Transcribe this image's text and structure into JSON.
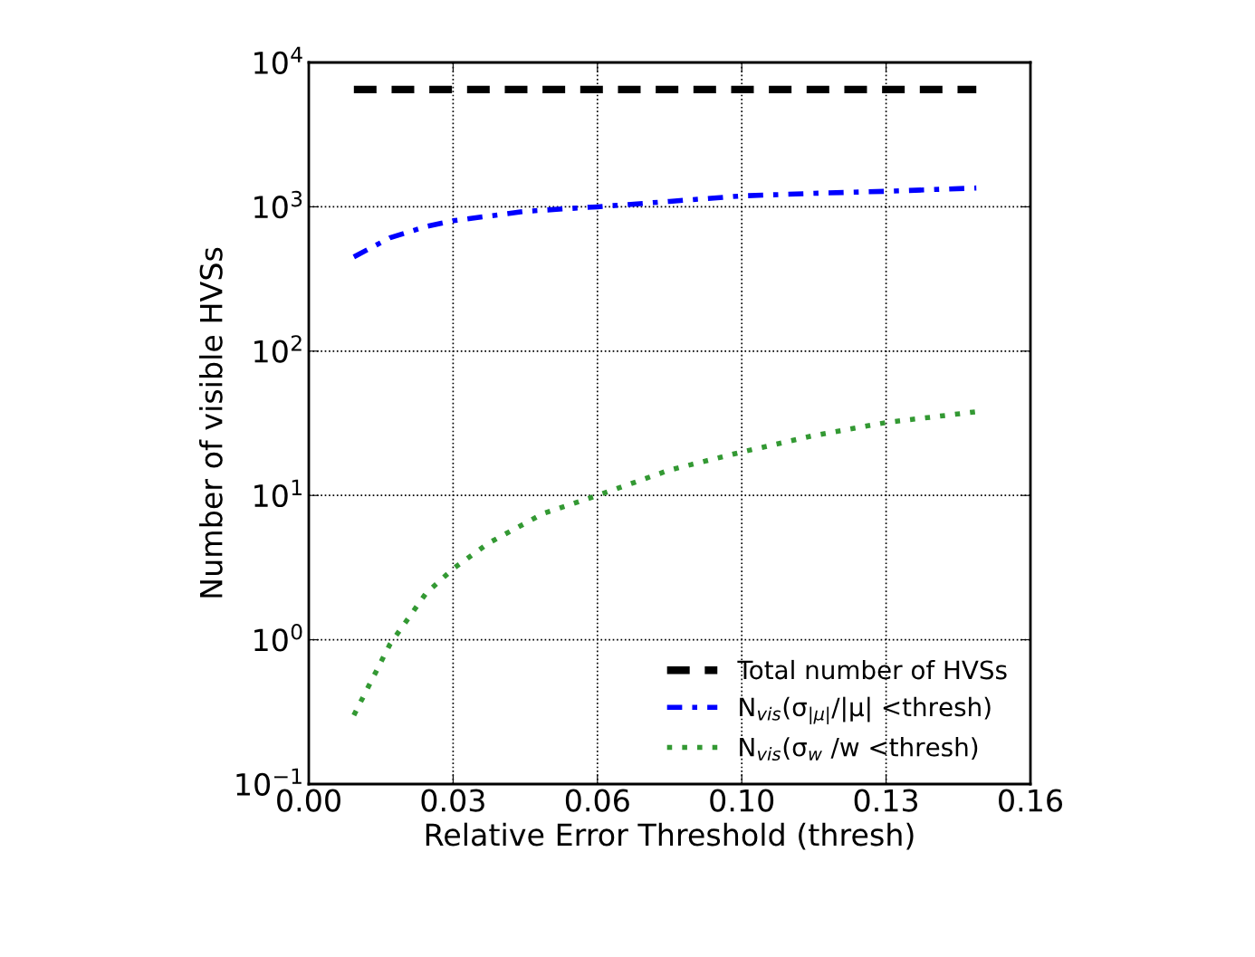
{
  "chart_data": {
    "type": "line",
    "xlabel": "Relative Error Threshold (thresh)",
    "ylabel": "Number of visible HVSs",
    "log": "y",
    "grid": true,
    "legend": "bottom right",
    "xlim": [
      0,
      0.16
    ],
    "xticks": [
      {
        "value": 0,
        "label": "0.00"
      },
      {
        "value": 0.032,
        "label": "0.03"
      },
      {
        "value": 0.064,
        "label": "0.06"
      },
      {
        "value": 0.096,
        "label": "0.10"
      },
      {
        "value": 0.128,
        "label": "0.13"
      },
      {
        "value": 0.16,
        "label": "0.16"
      }
    ],
    "ylim": [
      0.1,
      10000
    ],
    "yticks": [
      {
        "value": 0.1,
        "label": "10$^{−1}$"
      },
      {
        "value": 1,
        "label": "10$^{0}$"
      },
      {
        "value": 10,
        "label": "10$^{1}$"
      },
      {
        "value": 100,
        "label": "10$^{2}$"
      },
      {
        "value": 1000,
        "label": "10$^{3}$"
      },
      {
        "value": 10000,
        "label": "10$^{4}$"
      }
    ],
    "series": [
      {
        "name": "Total number of HVSs",
        "color": "#000000",
        "line_style": "dashed",
        "x": [
          0.01,
          0.148
        ],
        "values": [
          6500,
          6500
        ]
      },
      {
        "name": "N$_{vis}$(σ$_{|μ|}$/|μ| <thresh)",
        "color": "#0000ff",
        "line_style": "dashdot",
        "x": [
          0.01,
          0.018,
          0.026,
          0.032,
          0.048,
          0.064,
          0.08,
          0.096,
          0.112,
          0.128,
          0.148
        ],
        "values": [
          450,
          610,
          730,
          800,
          930,
          1000,
          1090,
          1190,
          1240,
          1280,
          1350
        ]
      },
      {
        "name": "N$_{vis}$(σ$_{w}$ /w <thresh)",
        "color": "#339933",
        "line_style": "dotted",
        "x": [
          0.01,
          0.018,
          0.026,
          0.032,
          0.04,
          0.052,
          0.064,
          0.08,
          0.096,
          0.112,
          0.128,
          0.148
        ],
        "values": [
          0.3,
          0.93,
          2.1,
          3.1,
          4.7,
          7.5,
          10,
          15,
          20,
          26,
          32,
          38
        ]
      }
    ]
  }
}
